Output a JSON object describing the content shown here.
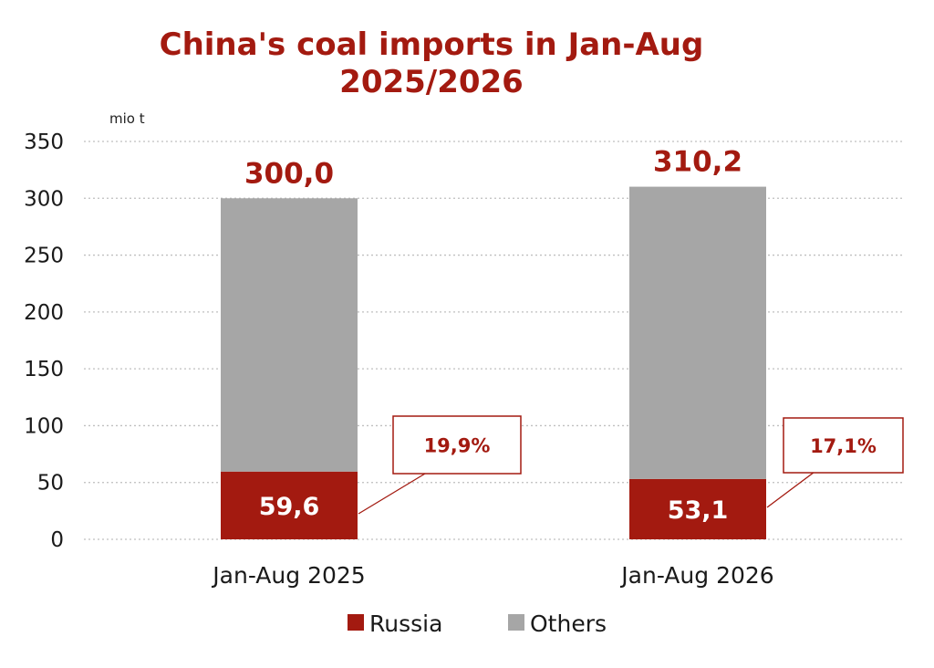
{
  "chart_data": {
    "type": "bar",
    "stacked": true,
    "title_lines": [
      "China's coal imports in Jan-Aug",
      "2025/2026"
    ],
    "unit": "mio t",
    "ylim": [
      0,
      350
    ],
    "yticks": [
      0,
      50,
      100,
      150,
      200,
      250,
      300,
      350
    ],
    "grid": true,
    "legend_position": "bottom",
    "categories": [
      "Jan-Aug 2025",
      "Jan-Aug 2026"
    ],
    "series": [
      {
        "name": "Russia",
        "values": [
          59.6,
          53.1
        ],
        "labels": [
          "59,6",
          "53,1"
        ]
      },
      {
        "name": "Others",
        "values": [
          240.4,
          257.1
        ]
      }
    ],
    "totals": [
      300.0,
      310.2
    ],
    "total_labels": [
      "300,0",
      "310,2"
    ],
    "share_labels": [
      "19,9%",
      "17,1%"
    ]
  },
  "colors": {
    "russia": "#a31a10",
    "others": "#a6a6a6",
    "title": "#a31a10",
    "grid": "#bfbfbf",
    "callout_border": "#a31a10"
  }
}
